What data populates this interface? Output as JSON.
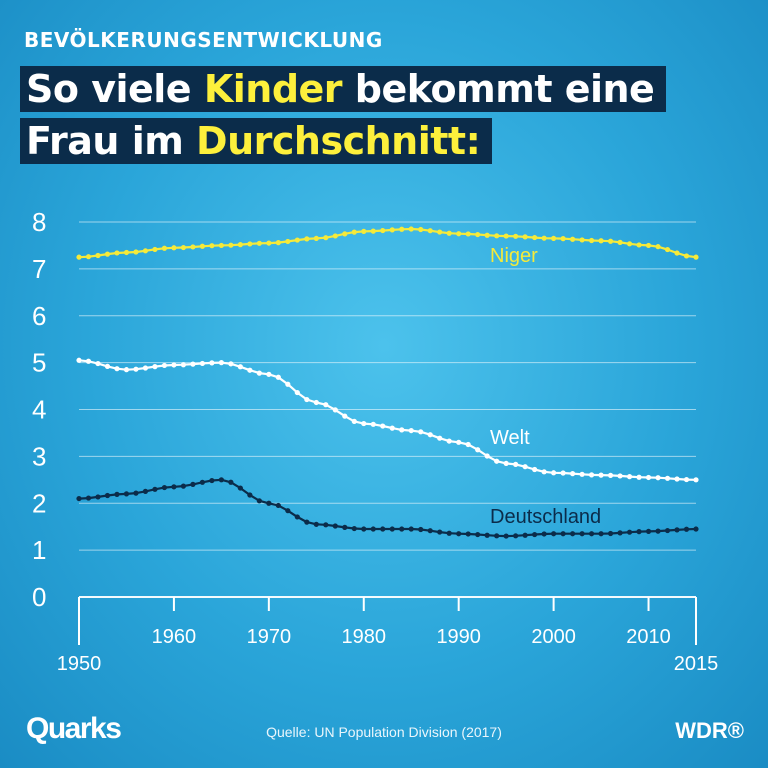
{
  "header": {
    "overline": "BEVÖLKERUNGSENTWICKLUNG",
    "title_line1_pre": "So viele ",
    "title_line1_highlight": "Kinder",
    "title_line1_post": " bekommt eine",
    "title_line2_pre": "Frau im ",
    "title_line2_highlight": "Durchschnitt:"
  },
  "footer": {
    "source": "Quelle: UN Population Division (2017)",
    "brand_left": "Quarks",
    "brand_right": "WDR®"
  },
  "colors": {
    "niger": "#f5ea3a",
    "welt": "#ffffff",
    "deutschland": "#0b2c4a",
    "grid": "#ffffff",
    "title_bg": "#0b2c4a",
    "highlight": "#fdf03c"
  },
  "chart_data": {
    "type": "line",
    "title": "",
    "xlabel": "",
    "ylabel": "",
    "xlim": [
      1950,
      2015
    ],
    "ylim": [
      0,
      8
    ],
    "grid": true,
    "y_ticks": [
      "0",
      "1",
      "2",
      "3",
      "4",
      "5",
      "6",
      "7",
      "8"
    ],
    "x_ticks": [
      "1950",
      "1960",
      "1970",
      "1980",
      "1990",
      "2000",
      "2010",
      "2015"
    ],
    "x": [
      1950,
      1955,
      1960,
      1965,
      1970,
      1975,
      1980,
      1985,
      1990,
      1995,
      2000,
      2005,
      2010,
      2015
    ],
    "series": [
      {
        "name": "Niger",
        "values": [
          7.25,
          7.35,
          7.45,
          7.5,
          7.55,
          7.65,
          7.8,
          7.85,
          7.75,
          7.7,
          7.65,
          7.6,
          7.5,
          7.25
        ]
      },
      {
        "name": "Welt",
        "values": [
          5.05,
          4.85,
          4.95,
          5.0,
          4.75,
          4.15,
          3.7,
          3.55,
          3.3,
          2.85,
          2.65,
          2.6,
          2.55,
          2.5
        ]
      },
      {
        "name": "Deutschland",
        "values": [
          2.1,
          2.2,
          2.35,
          2.5,
          2.0,
          1.55,
          1.45,
          1.45,
          1.35,
          1.3,
          1.35,
          1.35,
          1.4,
          1.45
        ]
      }
    ]
  }
}
